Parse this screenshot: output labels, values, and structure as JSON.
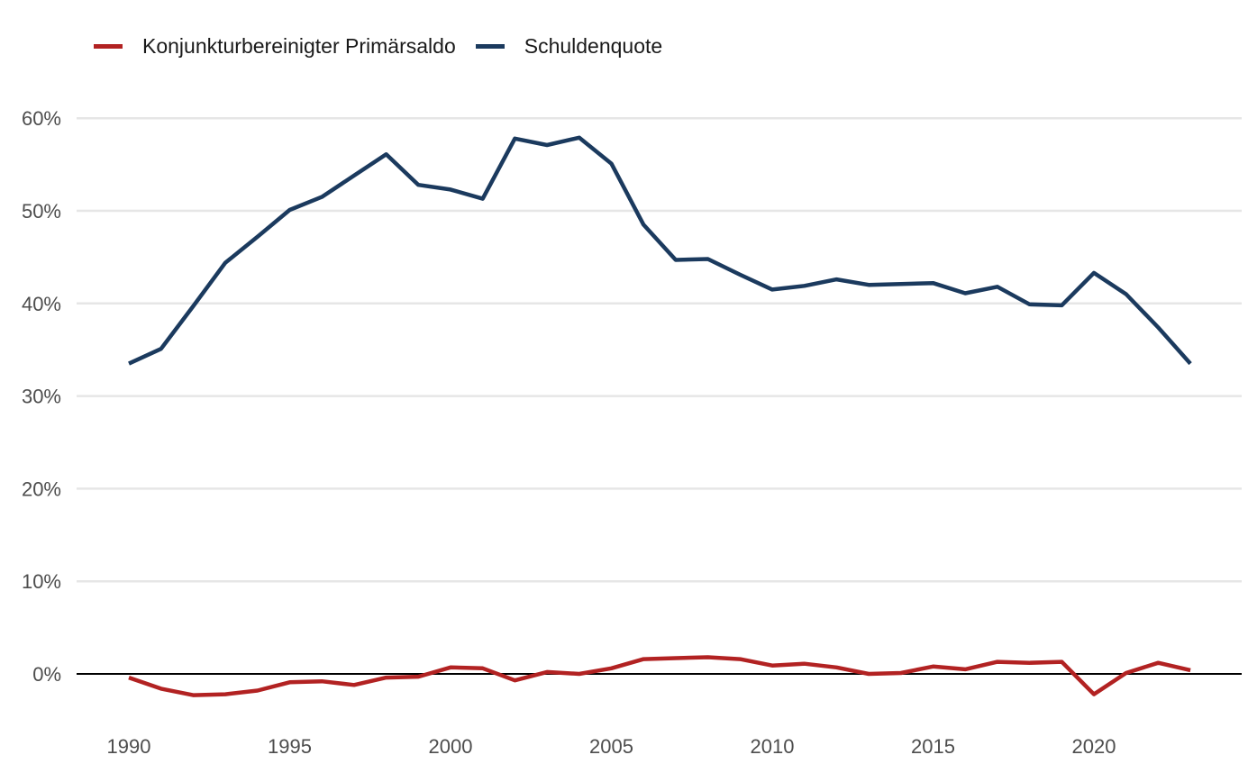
{
  "legend": {
    "items": [
      {
        "label": "Konjunkturbereinigter Primärsaldo",
        "color": "#B22222"
      },
      {
        "label": "Schuldenquote",
        "color": "#1B3A5E"
      }
    ]
  },
  "axes": {
    "y_ticks": [
      "0%",
      "10%",
      "20%",
      "30%",
      "40%",
      "50%",
      "60%"
    ],
    "x_ticks": [
      "1990",
      "1995",
      "2000",
      "2005",
      "2010",
      "2015",
      "2020"
    ]
  },
  "chart_data": {
    "type": "line",
    "title": "",
    "xlabel": "",
    "ylabel": "",
    "ylim": [
      -5,
      62
    ],
    "y_tick_values": [
      0,
      10,
      20,
      30,
      40,
      50,
      60
    ],
    "x_tick_values": [
      1990,
      1995,
      2000,
      2005,
      2010,
      2015,
      2020
    ],
    "grid": "horizontal",
    "legend_position": "top-left",
    "zero_line": true,
    "x": [
      1990,
      1991,
      1992,
      1993,
      1994,
      1995,
      1996,
      1997,
      1998,
      1999,
      2000,
      2001,
      2002,
      2003,
      2004,
      2005,
      2006,
      2007,
      2008,
      2009,
      2010,
      2011,
      2012,
      2013,
      2014,
      2015,
      2016,
      2017,
      2018,
      2019,
      2020,
      2021,
      2022,
      2023
    ],
    "series": [
      {
        "name": "Konjunkturbereinigter Primärsaldo",
        "color": "#B22222",
        "values": [
          -0.4,
          -1.6,
          -2.3,
          -2.2,
          -1.8,
          -0.9,
          -0.8,
          -1.2,
          -0.4,
          -0.3,
          0.7,
          0.6,
          -0.7,
          0.2,
          0.0,
          0.6,
          1.6,
          1.7,
          1.8,
          1.6,
          0.9,
          1.1,
          0.7,
          0.0,
          0.1,
          0.8,
          0.5,
          1.3,
          1.2,
          1.3,
          -2.2,
          0.1,
          1.2,
          0.4
        ]
      },
      {
        "name": "Schuldenquote",
        "color": "#1B3A5E",
        "values": [
          33.5,
          35.1,
          39.7,
          44.4,
          47.2,
          50.1,
          51.5,
          53.8,
          56.1,
          52.8,
          52.3,
          51.3,
          57.8,
          57.1,
          57.9,
          55.1,
          48.5,
          44.7,
          44.8,
          43.1,
          41.5,
          41.9,
          42.6,
          42.0,
          42.1,
          42.2,
          41.1,
          41.8,
          39.9,
          39.8,
          43.3,
          41.0,
          37.4,
          33.5
        ]
      }
    ]
  }
}
